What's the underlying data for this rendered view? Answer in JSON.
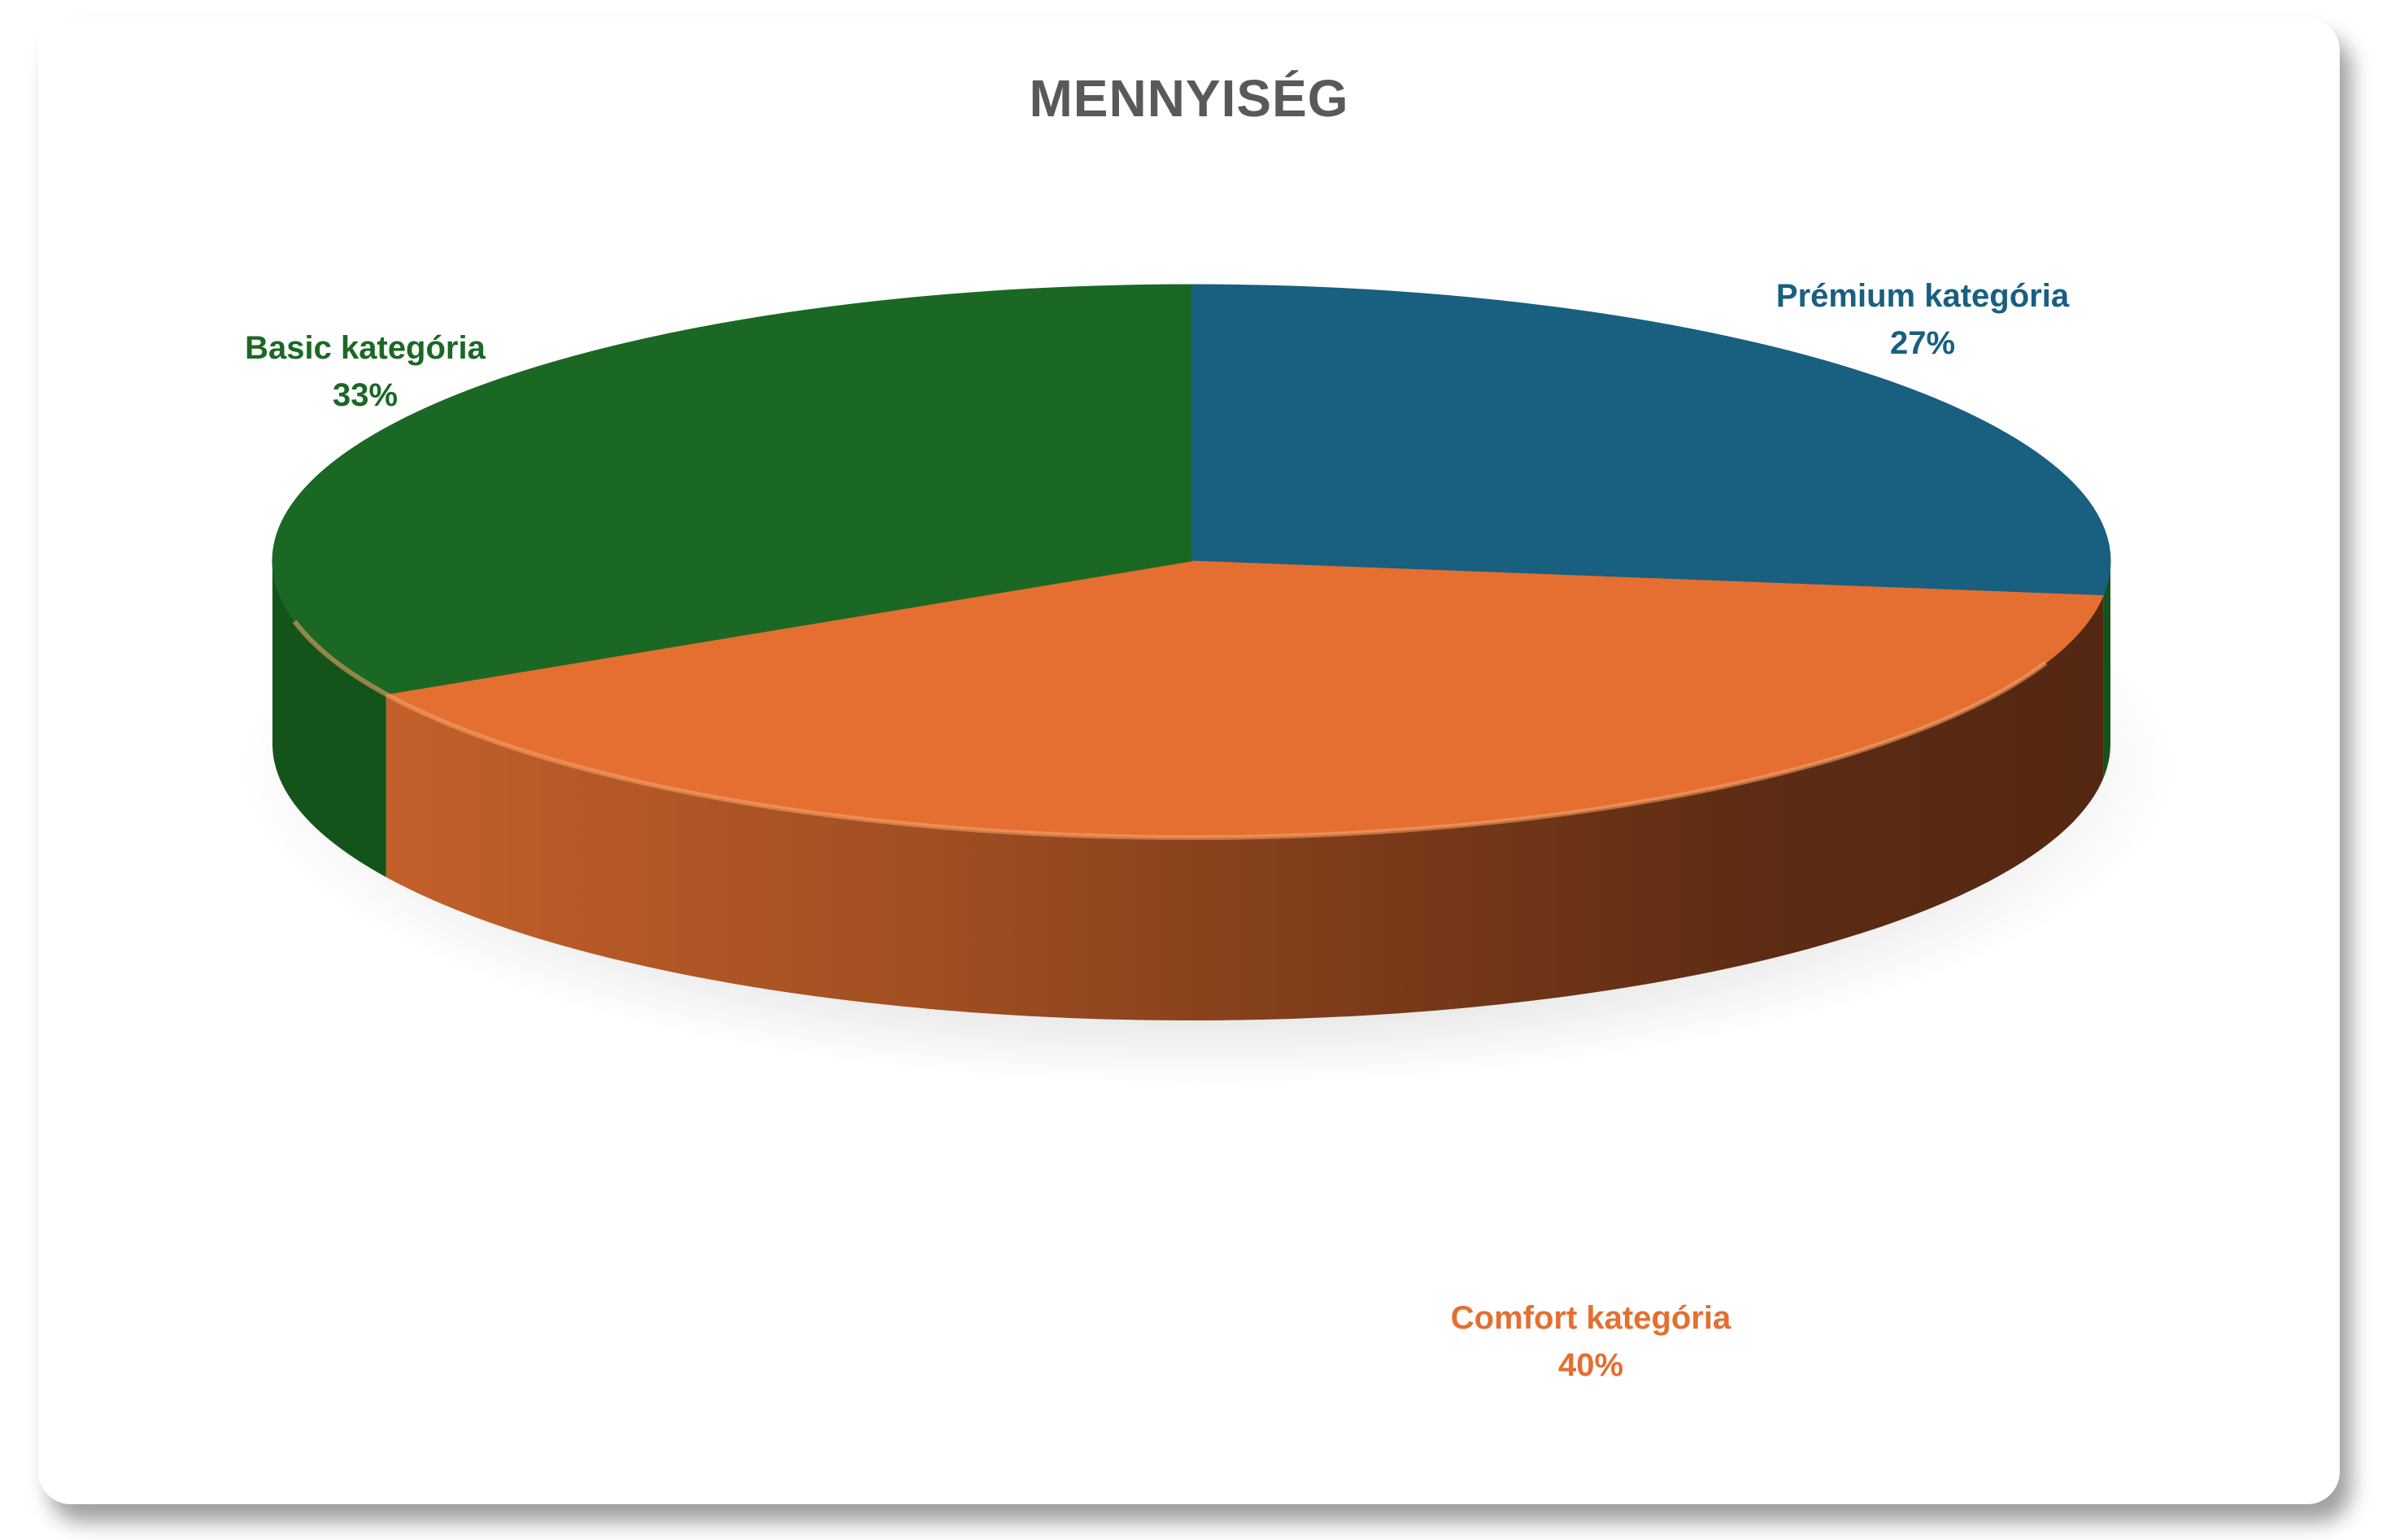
{
  "chart_data": {
    "type": "pie",
    "style": "3d",
    "title": "MENNYISÉG",
    "slices": [
      {
        "label": "Prémium kategória",
        "value": 27,
        "display": "27%",
        "color": "#185F80"
      },
      {
        "label": "Comfort kategória",
        "value": 40,
        "display": "40%",
        "color": "#E46F30"
      },
      {
        "label": "Basic kategória",
        "value": 33,
        "display": "33%",
        "color": "#1B6824"
      }
    ],
    "legend": "none",
    "data_labels": "outside, category name and percentage"
  }
}
